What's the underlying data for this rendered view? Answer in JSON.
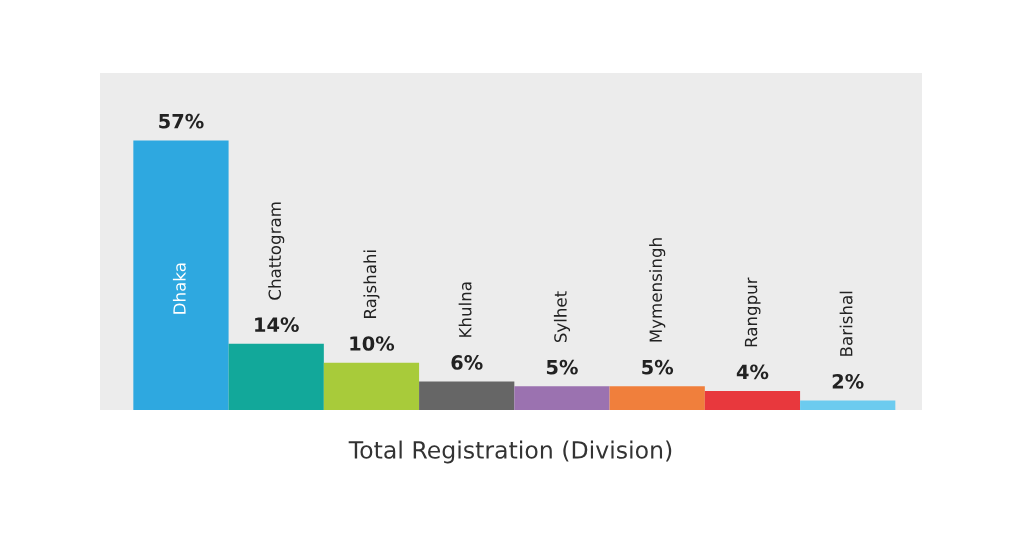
{
  "chart_data": {
    "type": "bar",
    "xlabel": "Total Registration (Division)",
    "categories": [
      "Dhaka",
      "Chattogram",
      "Rajshahi",
      "Khulna",
      "Sylhet",
      "Mymensingh",
      "Rangpur",
      "Barishal"
    ],
    "values": [
      57,
      14,
      10,
      6,
      5,
      5,
      4,
      2
    ],
    "value_labels": [
      "57%",
      "14%",
      "10%",
      "6%",
      "5%",
      "5%",
      "4%",
      "2%"
    ],
    "colors": [
      "#2ea8e0",
      "#12a89a",
      "#a8cb3a",
      "#666666",
      "#9b72b0",
      "#f07f3c",
      "#e8383d",
      "#6ccbef"
    ]
  }
}
